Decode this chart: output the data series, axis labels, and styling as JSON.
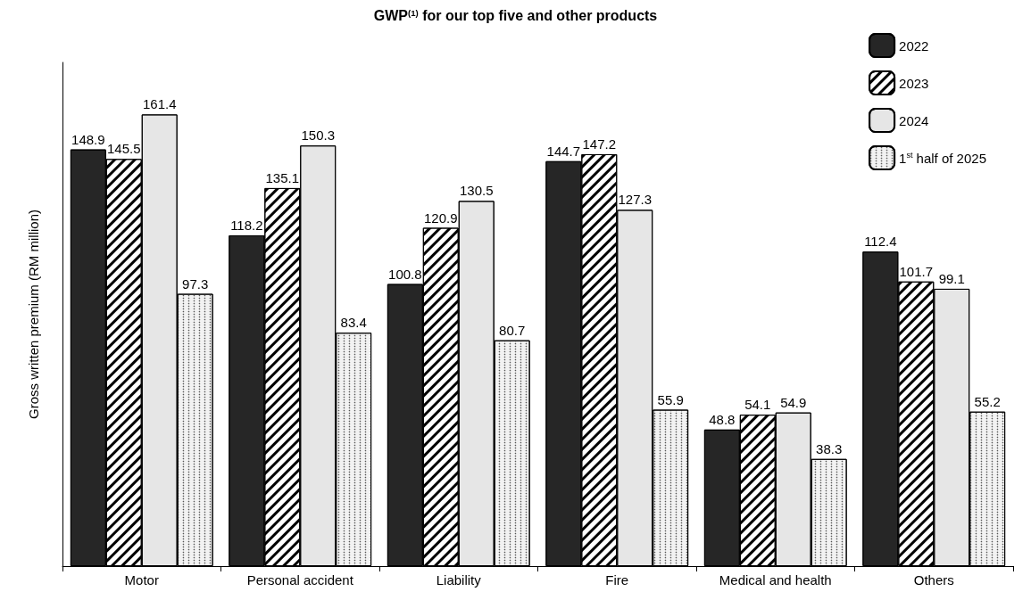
{
  "chart_data": {
    "type": "bar",
    "title": "GWP$^{(1)}$ for our top five and other products",
    "ylabel": "Gross written premium (RM million)",
    "categories": [
      "Motor",
      "Personal accident",
      "Liability",
      "Fire",
      "Medical and health",
      "Others"
    ],
    "series": [
      {
        "name": "2022",
        "color": "#262626",
        "values": [
          148.9,
          118.2,
          100.8,
          144.7,
          48.8,
          112.4
        ]
      },
      {
        "name": "2023",
        "color": "#ffffff",
        "values": [
          145.5,
          135.1,
          120.9,
          147.2,
          54.1,
          101.7
        ]
      },
      {
        "name": "2024",
        "color": "#e6e6e6",
        "values": [
          161.4,
          150.3,
          130.5,
          127.3,
          54.9,
          99.1
        ]
      },
      {
        "name": "1$^{st}$ half of 2025",
        "color": "#f2f2f2",
        "values": [
          97.3,
          83.4,
          80.7,
          55.9,
          38.3,
          55.2
        ]
      }
    ],
    "data_labels": true,
    "legend": "top right",
    "grid": false,
    "tick_labels": "x"
  }
}
